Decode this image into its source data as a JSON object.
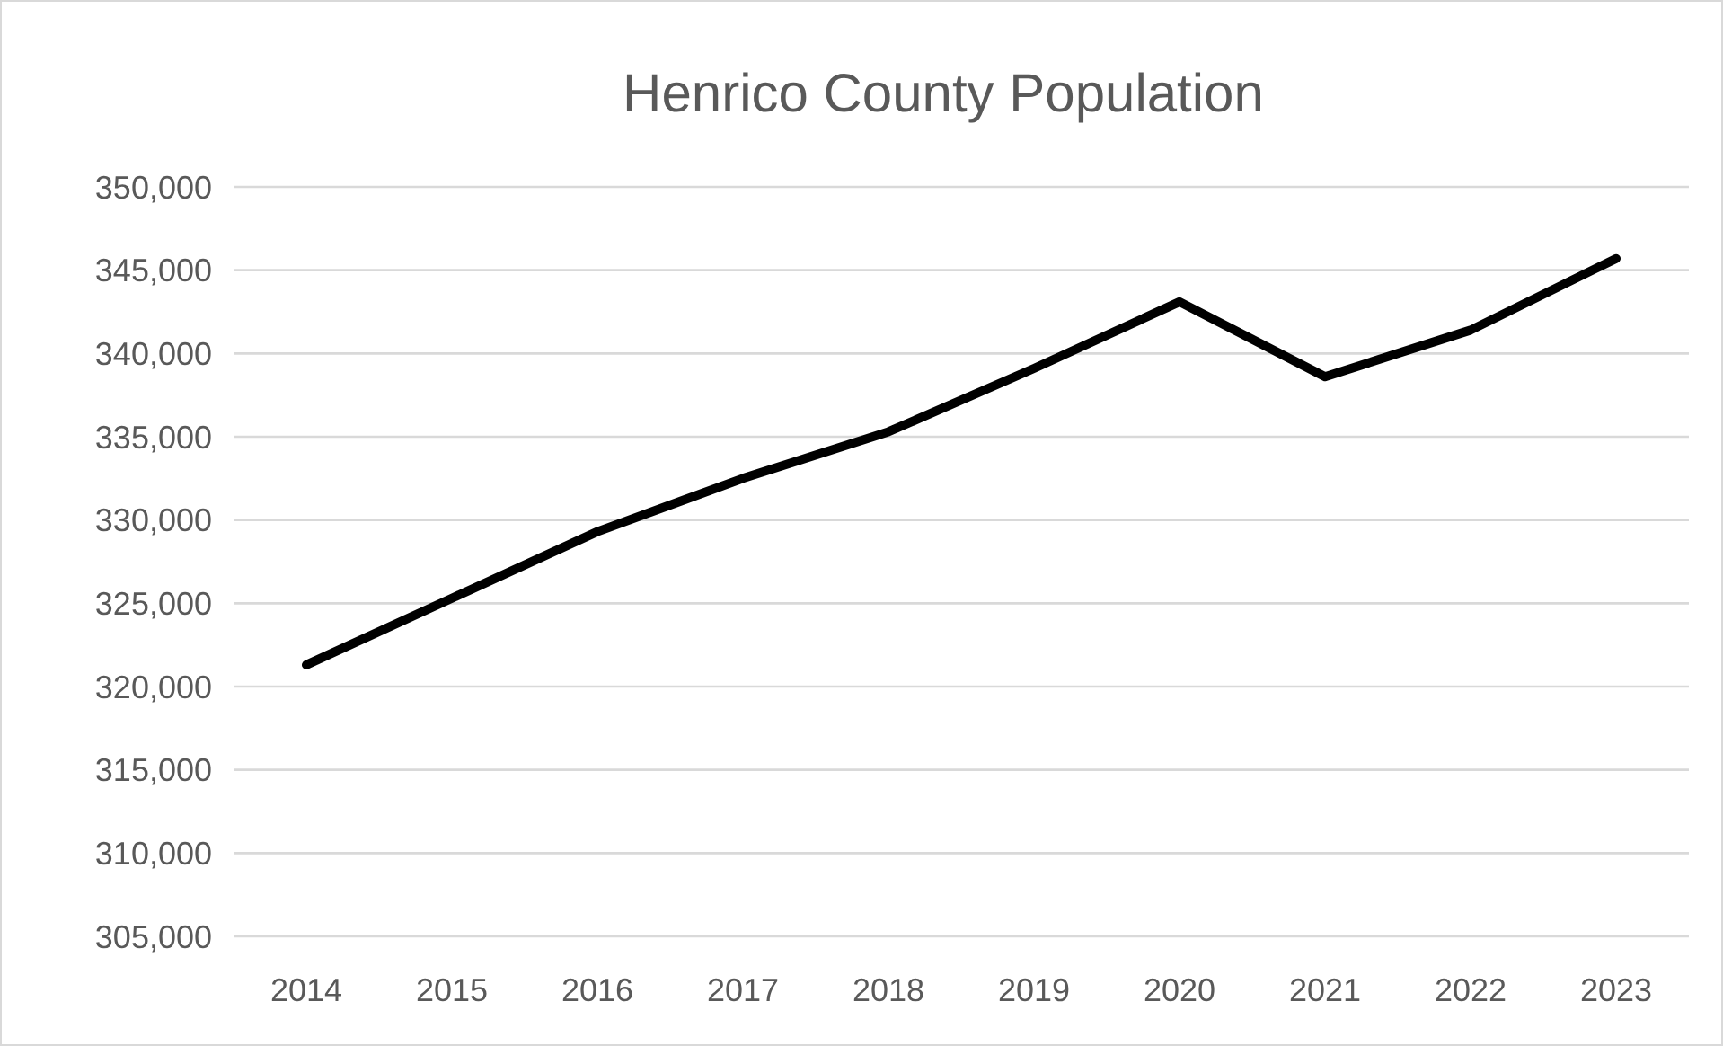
{
  "chart_data": {
    "type": "line",
    "title": "Henrico County Population",
    "categories": [
      "2014",
      "2015",
      "2016",
      "2017",
      "2018",
      "2019",
      "2020",
      "2021",
      "2022",
      "2023"
    ],
    "series": [
      {
        "color": "#000000",
        "values": [
          321300,
          325300,
          329300,
          332500,
          335300,
          339100,
          343100,
          338600,
          341400,
          345700
        ]
      }
    ],
    "ylim": [
      305000,
      350000
    ],
    "yticks": [
      {
        "value": 305000,
        "label": "305,000"
      },
      {
        "value": 310000,
        "label": "310,000"
      },
      {
        "value": 315000,
        "label": "315,000"
      },
      {
        "value": 320000,
        "label": "320,000"
      },
      {
        "value": 325000,
        "label": "325,000"
      },
      {
        "value": 330000,
        "label": "330,000"
      },
      {
        "value": 335000,
        "label": "335,000"
      },
      {
        "value": 340000,
        "label": "340,000"
      },
      {
        "value": 345000,
        "label": "345,000"
      },
      {
        "value": 350000,
        "label": "350,000"
      }
    ],
    "grid": "y",
    "marker": "none",
    "line_style": "solid"
  }
}
